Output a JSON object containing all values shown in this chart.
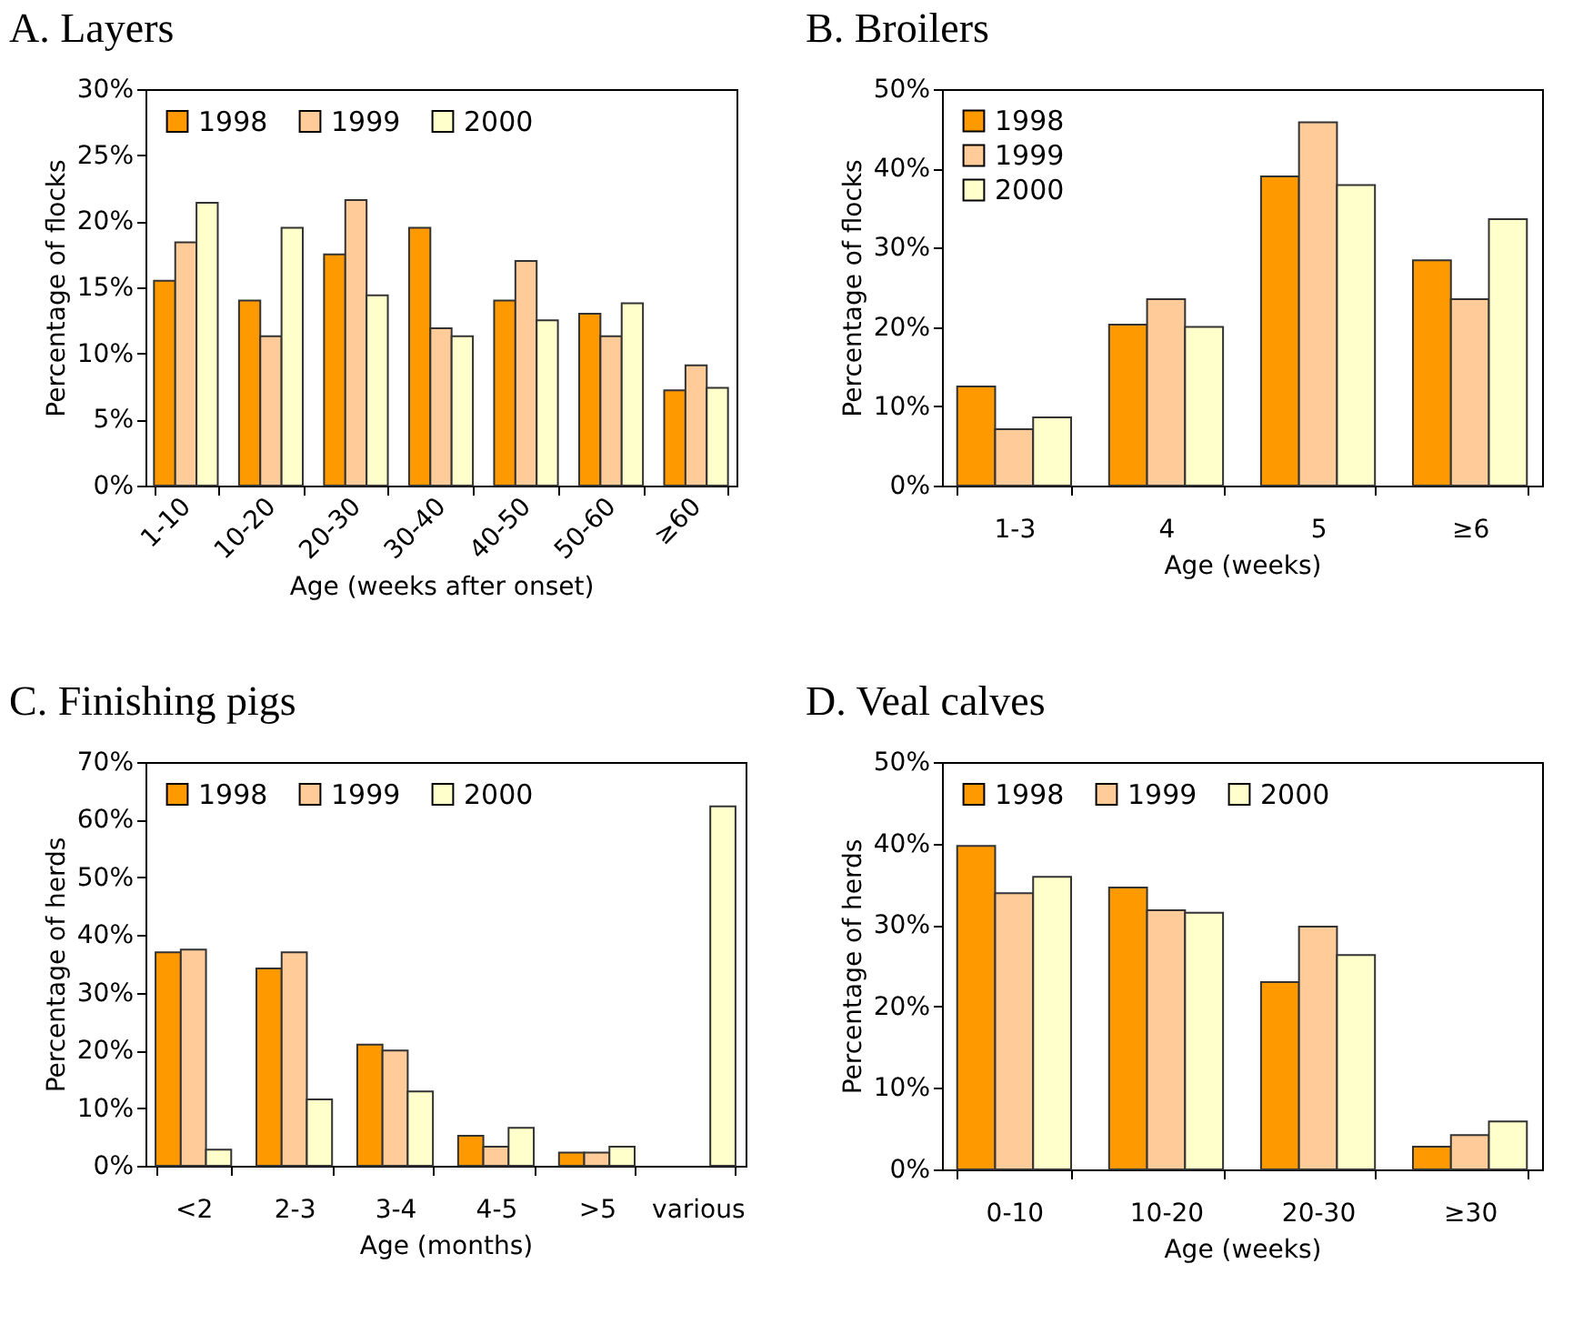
{
  "chart_data": [
    {
      "type": "bar",
      "title": "A. Layers",
      "xlabel": "Age (weeks after onset)",
      "ylabel": "Percentage of flocks",
      "categories": [
        "1-10",
        "10-20",
        "20-30",
        "30-40",
        "40-50",
        "50-60",
        "≥60"
      ],
      "series": [
        {
          "name": "1998",
          "color": "#ff9900",
          "values": [
            15.5,
            14,
            17.5,
            19.5,
            14,
            13,
            7.2
          ]
        },
        {
          "name": "1999",
          "color": "#ffcc99",
          "values": [
            18.4,
            11.3,
            21.6,
            11.9,
            17,
            11.3,
            9.1
          ]
        },
        {
          "name": "2000",
          "color": "#ffffcc",
          "values": [
            21.4,
            19.5,
            14.4,
            11.3,
            12.5,
            13.8,
            7.4
          ]
        }
      ],
      "ylim": [
        0,
        30
      ],
      "yticks": [
        {
          "value": 0,
          "label": "0%"
        },
        {
          "value": 5,
          "label": "5%"
        },
        {
          "value": 10,
          "label": "10%"
        },
        {
          "value": 15,
          "label": "15%"
        },
        {
          "value": 20,
          "label": "20%"
        },
        {
          "value": 25,
          "label": "25%"
        },
        {
          "value": 30,
          "label": "30%"
        }
      ],
      "grid": false,
      "legend": "top left"
    },
    {
      "type": "bar",
      "title": "B. Broilers",
      "xlabel": "Age (weeks)",
      "ylabel": "Percentage of flocks",
      "categories": [
        "1-3",
        "4",
        "5",
        "≥6"
      ],
      "series": [
        {
          "name": "1998",
          "color": "#ff9900",
          "values": [
            12.5,
            20.3,
            39,
            28.4
          ]
        },
        {
          "name": "1999",
          "color": "#ffcc99",
          "values": [
            7.1,
            23.5,
            45.8,
            23.5
          ]
        },
        {
          "name": "2000",
          "color": "#ffffcc",
          "values": [
            8.6,
            20,
            37.9,
            33.6
          ]
        }
      ],
      "ylim": [
        0,
        50
      ],
      "yticks": [
        {
          "value": 0,
          "label": "0%"
        },
        {
          "value": 10,
          "label": "10%"
        },
        {
          "value": 20,
          "label": "20%"
        },
        {
          "value": 30,
          "label": "30%"
        },
        {
          "value": 40,
          "label": "40%"
        },
        {
          "value": 50,
          "label": "50%"
        }
      ],
      "grid": false,
      "legend": "top left"
    },
    {
      "type": "bar",
      "title": "C. Finishing pigs",
      "xlabel": "Age (months)",
      "ylabel": "Percentage of herds",
      "categories": [
        "<2",
        "2-3",
        "3-4",
        "4-5",
        ">5",
        "various"
      ],
      "series": [
        {
          "name": "1998",
          "color": "#ff9900",
          "values": [
            37,
            34.2,
            21,
            5.2,
            2.3,
            null
          ]
        },
        {
          "name": "1999",
          "color": "#ffcc99",
          "values": [
            37.5,
            37,
            20,
            3.3,
            2.3,
            null
          ]
        },
        {
          "name": "2000",
          "color": "#ffffcc",
          "values": [
            2.8,
            11.5,
            12.9,
            6.6,
            3.3,
            62.3
          ]
        }
      ],
      "ylim": [
        0,
        70
      ],
      "yticks": [
        {
          "value": 0,
          "label": "0%"
        },
        {
          "value": 10,
          "label": "10%"
        },
        {
          "value": 20,
          "label": "20%"
        },
        {
          "value": 30,
          "label": "30%"
        },
        {
          "value": 40,
          "label": "40%"
        },
        {
          "value": 50,
          "label": "50%"
        },
        {
          "value": 60,
          "label": "60%"
        },
        {
          "value": 70,
          "label": "70%"
        }
      ],
      "grid": false,
      "legend": "top left"
    },
    {
      "type": "bar",
      "title": "D. Veal calves",
      "xlabel": "Age (weeks)",
      "ylabel": "Percentage of herds",
      "categories": [
        "0-10",
        "10-20",
        "20-30",
        "≥30"
      ],
      "series": [
        {
          "name": "1998",
          "color": "#ff9900",
          "values": [
            39.7,
            34.6,
            23,
            2.8
          ]
        },
        {
          "name": "1999",
          "color": "#ffcc99",
          "values": [
            33.9,
            31.8,
            29.8,
            4.2
          ]
        },
        {
          "name": "2000",
          "color": "#ffffcc",
          "values": [
            35.9,
            31.5,
            26.3,
            5.9
          ]
        }
      ],
      "ylim": [
        0,
        50
      ],
      "yticks": [
        {
          "value": 0,
          "label": "0%"
        },
        {
          "value": 10,
          "label": "10%"
        },
        {
          "value": 20,
          "label": "20%"
        },
        {
          "value": 30,
          "label": "30%"
        },
        {
          "value": 40,
          "label": "40%"
        },
        {
          "value": 50,
          "label": "50%"
        }
      ],
      "grid": false,
      "legend": "top left"
    }
  ]
}
